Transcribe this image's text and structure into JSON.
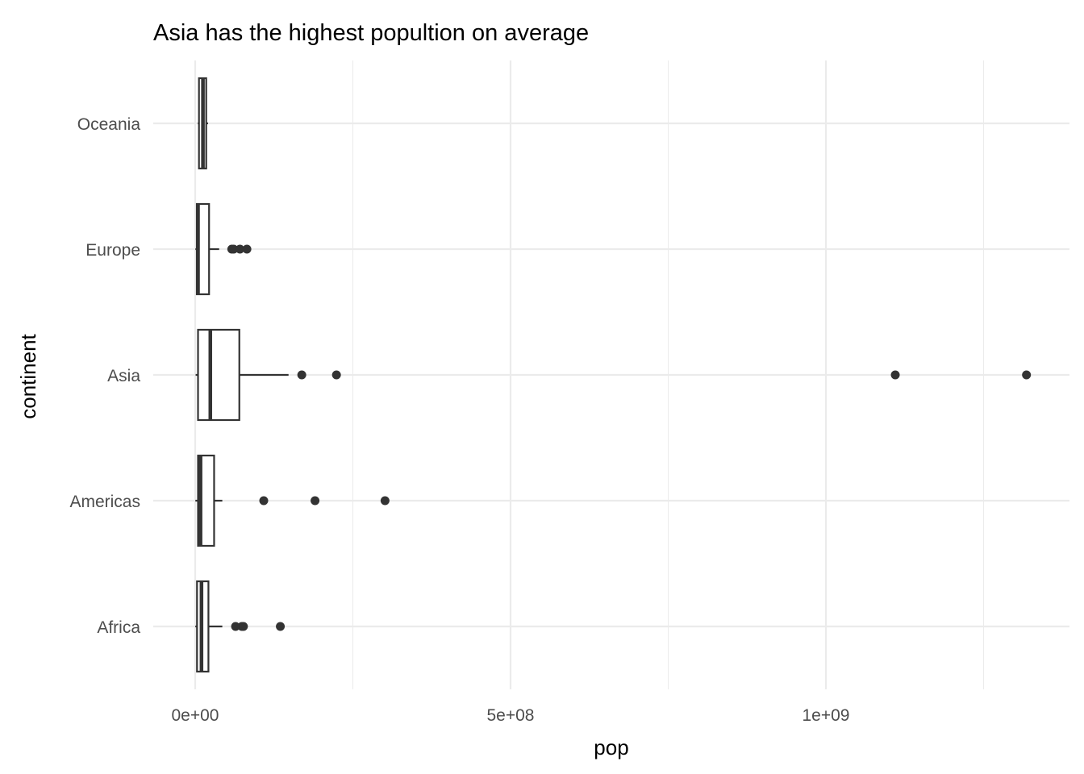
{
  "chart_data": {
    "type": "boxplot",
    "orientation": "horizontal",
    "title": "Asia has the highest popultion on average",
    "xlabel": "pop",
    "ylabel": "continent",
    "xlim": [
      -15000000.0,
      1450000000.0
    ],
    "x_ticks": [
      0,
      500000000,
      1000000000
    ],
    "x_tick_labels": [
      "0e+00",
      "5e+08",
      "1e+09"
    ],
    "x_minor_ticks": [
      250000000,
      750000000,
      1250000000
    ],
    "grid": true,
    "categories": [
      "Africa",
      "Americas",
      "Asia",
      "Europe",
      "Oceania"
    ],
    "series": [
      {
        "name": "Africa",
        "min": 200000,
        "q1": 2900000,
        "median": 10000000,
        "q3": 21000000,
        "max": 43000000,
        "outliers": [
          64000000,
          74000000,
          76500000,
          135000000
        ]
      },
      {
        "name": "Americas",
        "min": 300000,
        "q1": 4500000,
        "median": 8500000,
        "q3": 30000000,
        "max": 43000000,
        "outliers": [
          108700000,
          190000000,
          301000000
        ]
      },
      {
        "name": "Asia",
        "min": 700000,
        "q1": 4500000,
        "median": 24000000,
        "q3": 70000000,
        "max": 148000000,
        "outliers": [
          169000000,
          224000000,
          1110000000,
          1318000000
        ]
      },
      {
        "name": "Europe",
        "min": 300000,
        "q1": 2600000,
        "median": 4500000,
        "q3": 22000000,
        "max": 38000000,
        "outliers": [
          58000000,
          61000000,
          71000000,
          82000000
        ]
      },
      {
        "name": "Oceania",
        "min": 4100000,
        "q1": 6000000,
        "median": 12300000,
        "q3": 17500000,
        "max": 20400000,
        "outliers": []
      }
    ],
    "colors": {
      "box": "#333333",
      "fill": "#ffffff",
      "grid": "#ebebeb"
    }
  }
}
